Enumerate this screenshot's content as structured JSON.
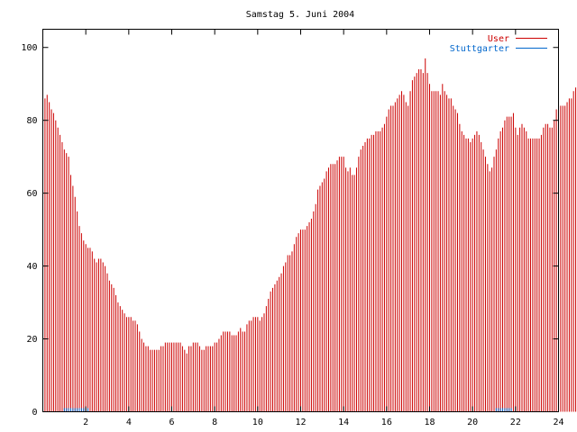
{
  "chart_data": {
    "type": "bar",
    "title": "Samstag 5. Juni 2004",
    "xlabel": "",
    "ylabel": "",
    "xlim": [
      0,
      24
    ],
    "ylim": [
      0,
      105
    ],
    "x_ticks": [
      "2",
      "4",
      "6",
      "8",
      "10",
      "12",
      "14",
      "16",
      "18",
      "20",
      "22",
      "24"
    ],
    "y_ticks": [
      "0",
      "20",
      "40",
      "60",
      "80",
      "100"
    ],
    "grid": false,
    "legend_position": "top-right",
    "series": [
      {
        "name": "User",
        "color": "#cc0000",
        "x_start": 0,
        "step_hours": 0.1,
        "values": [
          90,
          86,
          87,
          85,
          83,
          82,
          80,
          78,
          76,
          74,
          72,
          71,
          70,
          65,
          62,
          59,
          55,
          51,
          49,
          47,
          46,
          45,
          45,
          44,
          42,
          41,
          42,
          42,
          41,
          40,
          38,
          36,
          35,
          34,
          32,
          30,
          29,
          28,
          27,
          26,
          26,
          26,
          25,
          25,
          24,
          22,
          20,
          19,
          18,
          18,
          17,
          17,
          17,
          17,
          17,
          18,
          18,
          19,
          19,
          19,
          19,
          19,
          19,
          19,
          19,
          18,
          17,
          16,
          18,
          18,
          19,
          19,
          19,
          18,
          17,
          17,
          18,
          18,
          18,
          18,
          19,
          19,
          20,
          21,
          22,
          22,
          22,
          22,
          21,
          21,
          21,
          22,
          23,
          22,
          22,
          24,
          25,
          25,
          26,
          26,
          26,
          25,
          26,
          27,
          29,
          31,
          33,
          34,
          35,
          36,
          37,
          38,
          40,
          41,
          43,
          43,
          44,
          46,
          48,
          49,
          50,
          50,
          50,
          51,
          52,
          53,
          55,
          57,
          61,
          62,
          63,
          64,
          66,
          67,
          68,
          68,
          68,
          69,
          70,
          70,
          70,
          67,
          66,
          67,
          65,
          65,
          67,
          70,
          72,
          73,
          74,
          75,
          75,
          76,
          76,
          77,
          77,
          77,
          78,
          79,
          81,
          83,
          84,
          84,
          85,
          86,
          87,
          88,
          87,
          85,
          84,
          88,
          91,
          92,
          93,
          94,
          94,
          93,
          97,
          93,
          90,
          88,
          88,
          88,
          88,
          87,
          90,
          88,
          87,
          86,
          86,
          84,
          83,
          82,
          79,
          77,
          76,
          75,
          75,
          74,
          75,
          76,
          77,
          76,
          74,
          72,
          70,
          68,
          66,
          67,
          70,
          72,
          75,
          77,
          78,
          80,
          81,
          81,
          81,
          82,
          78,
          76,
          78,
          79,
          78,
          77,
          75,
          75,
          75,
          75,
          75,
          75,
          76,
          78,
          79,
          79,
          78,
          78,
          80,
          83,
          84,
          84,
          84,
          84,
          85,
          86,
          86,
          88,
          89,
          91,
          91,
          91
        ]
      },
      {
        "name": "Stuttgarter",
        "color": "#0066cc",
        "x_start": 0,
        "step_hours": 0.1,
        "values": [
          0,
          0,
          0,
          0,
          0,
          0,
          0,
          0,
          0,
          0,
          1,
          1,
          1,
          1,
          1,
          1,
          1,
          1,
          1,
          1,
          1,
          1,
          0,
          0,
          0,
          0,
          0,
          0,
          0,
          0,
          0,
          0,
          0,
          0,
          0,
          0,
          0,
          0,
          0,
          0,
          0,
          0,
          0,
          0,
          0,
          0,
          0,
          0,
          0,
          0,
          0,
          0,
          0,
          0,
          0,
          0,
          0,
          0,
          0,
          0,
          0,
          0,
          0,
          0,
          0,
          0,
          0,
          0,
          0,
          0,
          0,
          0,
          0,
          0,
          0,
          0,
          0,
          0,
          0,
          0,
          0,
          0,
          0,
          0,
          0,
          0,
          0,
          0,
          0,
          0,
          0,
          0,
          0,
          0,
          0,
          0,
          0,
          0,
          0,
          0,
          0,
          0,
          0,
          0,
          0,
          0,
          0,
          0,
          0,
          0,
          0,
          0,
          0,
          0,
          0,
          0,
          0,
          0,
          0,
          0,
          0,
          0,
          0,
          0,
          0,
          0,
          0,
          0,
          0,
          0,
          0,
          0,
          0,
          0,
          0,
          0,
          0,
          0,
          0,
          0,
          0,
          0,
          0,
          0,
          0,
          0,
          0,
          0,
          0,
          0,
          0,
          0,
          0,
          0,
          0,
          0,
          0,
          0,
          0,
          0,
          0,
          0,
          0,
          0,
          0,
          0,
          0,
          0,
          0,
          0,
          0,
          0,
          0,
          0,
          0,
          0,
          0,
          0,
          0,
          0,
          0,
          0,
          0,
          0,
          0,
          0,
          0,
          0,
          0,
          0,
          0,
          0,
          0,
          0,
          0,
          0,
          0,
          0,
          0,
          0,
          0,
          0,
          0,
          0,
          0,
          0,
          0,
          0,
          0,
          0,
          0,
          1,
          1,
          1,
          1,
          1,
          1,
          1,
          1,
          0,
          0,
          0,
          0,
          0,
          0,
          0,
          0,
          0,
          0,
          0,
          0,
          0,
          0,
          0,
          0,
          0,
          0,
          0,
          0,
          0,
          0,
          0,
          0,
          0,
          0,
          0,
          0,
          0,
          0,
          0
        ]
      }
    ]
  }
}
